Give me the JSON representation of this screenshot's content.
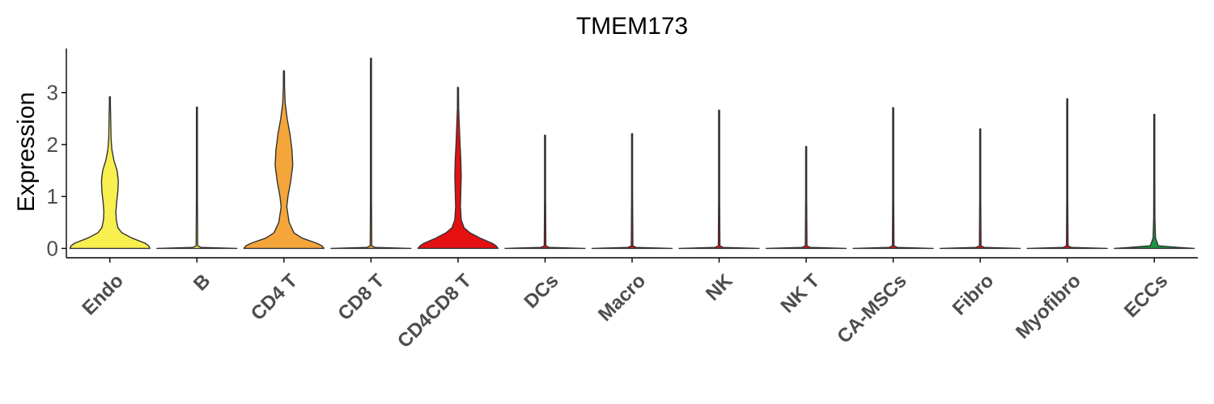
{
  "chart_data": {
    "type": "violin",
    "title": "TMEM173",
    "xlabel": "",
    "ylabel": "Expression",
    "ylim": [
      -0.18,
      3.85
    ],
    "yticks": [
      0,
      1,
      2,
      3
    ],
    "grid": false,
    "legend": "none",
    "categories": [
      "Endo",
      "B",
      "CD4 T",
      "CD8 T",
      "CD4CD8 T",
      "DCs",
      "Macro",
      "NK",
      "NK T",
      "CA-MSCs",
      "Fibro",
      "Myofibro",
      "ECCs"
    ],
    "series": [
      {
        "category": "Endo",
        "color": "#f7f04f",
        "max": 2.92,
        "profile": [
          [
            0,
            1.0
          ],
          [
            0.05,
            0.97
          ],
          [
            0.1,
            0.88
          ],
          [
            0.2,
            0.55
          ],
          [
            0.3,
            0.3
          ],
          [
            0.4,
            0.2
          ],
          [
            0.55,
            0.16
          ],
          [
            0.7,
            0.15
          ],
          [
            0.9,
            0.17
          ],
          [
            1.1,
            0.2
          ],
          [
            1.3,
            0.21
          ],
          [
            1.5,
            0.18
          ],
          [
            1.7,
            0.1
          ],
          [
            1.9,
            0.05
          ],
          [
            2.1,
            0.03
          ],
          [
            2.5,
            0.02
          ],
          [
            2.8,
            0.01
          ],
          [
            2.92,
            0.0
          ]
        ]
      },
      {
        "category": "B",
        "color": "#f7f04f",
        "max": 2.72,
        "profile": [
          [
            0,
            1.0
          ],
          [
            0.02,
            0.1
          ],
          [
            0.05,
            0.02
          ],
          [
            1.0,
            0.01
          ],
          [
            2.72,
            0.005
          ]
        ]
      },
      {
        "category": "CD4 T",
        "color": "#f4a63a",
        "max": 3.42,
        "profile": [
          [
            0,
            1.0
          ],
          [
            0.05,
            0.95
          ],
          [
            0.1,
            0.82
          ],
          [
            0.2,
            0.45
          ],
          [
            0.3,
            0.25
          ],
          [
            0.5,
            0.13
          ],
          [
            0.8,
            0.07
          ],
          [
            1.0,
            0.1
          ],
          [
            1.3,
            0.17
          ],
          [
            1.6,
            0.22
          ],
          [
            1.9,
            0.2
          ],
          [
            2.2,
            0.15
          ],
          [
            2.5,
            0.08
          ],
          [
            2.8,
            0.03
          ],
          [
            3.1,
            0.015
          ],
          [
            3.42,
            0.0
          ]
        ]
      },
      {
        "category": "CD8 T",
        "color": "#f4a63a",
        "max": 3.66,
        "profile": [
          [
            0,
            1.0
          ],
          [
            0.02,
            0.1
          ],
          [
            0.05,
            0.02
          ],
          [
            1.0,
            0.01
          ],
          [
            3.66,
            0.005
          ]
        ]
      },
      {
        "category": "CD4CD8 T",
        "color": "#e51012",
        "max": 3.1,
        "profile": [
          [
            0,
            1.0
          ],
          [
            0.05,
            0.95
          ],
          [
            0.1,
            0.85
          ],
          [
            0.2,
            0.55
          ],
          [
            0.3,
            0.3
          ],
          [
            0.4,
            0.15
          ],
          [
            0.55,
            0.08
          ],
          [
            0.8,
            0.06
          ],
          [
            1.1,
            0.07
          ],
          [
            1.4,
            0.08
          ],
          [
            1.7,
            0.07
          ],
          [
            2.0,
            0.05
          ],
          [
            2.4,
            0.03
          ],
          [
            2.7,
            0.015
          ],
          [
            3.1,
            0.0
          ]
        ]
      },
      {
        "category": "DCs",
        "color": "#e51012",
        "max": 2.18,
        "profile": [
          [
            0,
            1.0
          ],
          [
            0.02,
            0.1
          ],
          [
            0.05,
            0.02
          ],
          [
            1.0,
            0.01
          ],
          [
            2.18,
            0.005
          ]
        ]
      },
      {
        "category": "Macro",
        "color": "#e51012",
        "max": 2.21,
        "profile": [
          [
            0,
            1.0
          ],
          [
            0.02,
            0.1
          ],
          [
            0.05,
            0.02
          ],
          [
            1.0,
            0.01
          ],
          [
            2.21,
            0.005
          ]
        ]
      },
      {
        "category": "NK",
        "color": "#e51012",
        "max": 2.66,
        "profile": [
          [
            0,
            1.0
          ],
          [
            0.02,
            0.1
          ],
          [
            0.05,
            0.02
          ],
          [
            1.0,
            0.01
          ],
          [
            2.66,
            0.005
          ]
        ]
      },
      {
        "category": "NK T",
        "color": "#e51012",
        "max": 1.96,
        "profile": [
          [
            0,
            1.0
          ],
          [
            0.02,
            0.1
          ],
          [
            0.05,
            0.02
          ],
          [
            1.0,
            0.01
          ],
          [
            1.96,
            0.005
          ]
        ]
      },
      {
        "category": "CA-MSCs",
        "color": "#e51012",
        "max": 2.71,
        "profile": [
          [
            0,
            1.0
          ],
          [
            0.02,
            0.1
          ],
          [
            0.05,
            0.02
          ],
          [
            1.0,
            0.01
          ],
          [
            2.71,
            0.005
          ]
        ]
      },
      {
        "category": "Fibro",
        "color": "#e51012",
        "max": 2.3,
        "profile": [
          [
            0,
            1.0
          ],
          [
            0.02,
            0.1
          ],
          [
            0.05,
            0.02
          ],
          [
            1.0,
            0.01
          ],
          [
            2.3,
            0.005
          ]
        ]
      },
      {
        "category": "Myofibro",
        "color": "#e51012",
        "max": 2.88,
        "profile": [
          [
            0,
            1.0
          ],
          [
            0.02,
            0.1
          ],
          [
            0.05,
            0.02
          ],
          [
            1.0,
            0.01
          ],
          [
            2.88,
            0.005
          ]
        ]
      },
      {
        "category": "ECCs",
        "color": "#1a9641",
        "max": 2.58,
        "profile": [
          [
            0,
            1.0
          ],
          [
            0.02,
            0.6
          ],
          [
            0.05,
            0.1
          ],
          [
            0.2,
            0.03
          ],
          [
            0.6,
            0.015
          ],
          [
            1.5,
            0.008
          ],
          [
            2.58,
            0.005
          ]
        ]
      }
    ]
  }
}
